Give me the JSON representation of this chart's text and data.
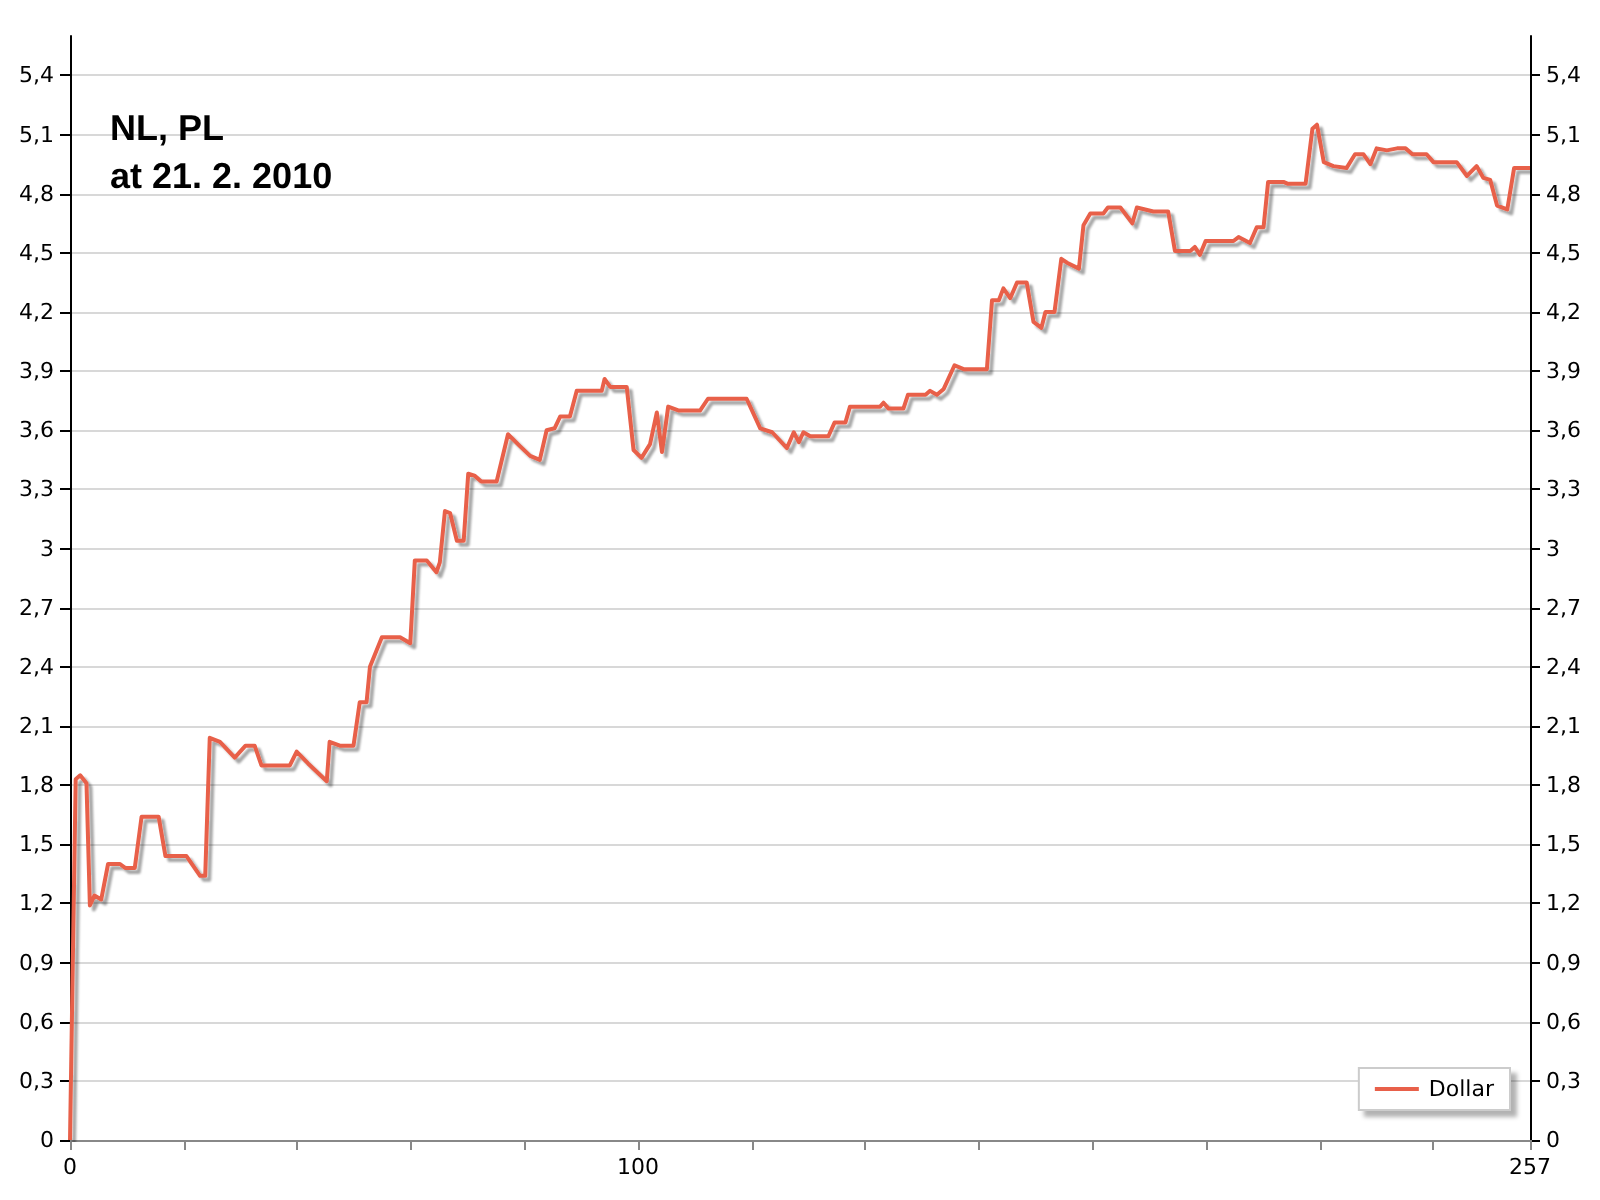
{
  "chart_data": {
    "type": "line",
    "title": "NL, PL",
    "subtitle": "at 21. 2. 2010",
    "series": [
      {
        "name": "Dollar",
        "color": "#e8604a",
        "x": [
          0,
          1,
          1.8,
          2.9,
          3.5,
          4.3,
          5.5,
          6.7,
          8.8,
          9.7,
          11.4,
          12.6,
          15.6,
          16.8,
          20.5,
          22.9,
          23.8,
          24.6,
          26.4,
          29,
          30.9,
          32.5,
          33.7,
          38.7,
          39.9,
          41.9,
          45.2,
          45.7,
          47.5,
          49.9,
          51,
          52.2,
          52.8,
          54.9,
          58.1,
          59.9,
          60.7,
          62.8,
          64.5,
          65.1,
          66,
          66.9,
          68.1,
          69.3,
          70.1,
          71.2,
          72.4,
          75.1,
          77.1,
          79.2,
          81,
          82.7,
          83.9,
          85.3,
          86.3,
          88,
          89.2,
          93.6,
          94.1,
          95.1,
          98,
          99.2,
          100.6,
          102.1,
          103.3,
          104.2,
          105.3,
          107.2,
          110.9,
          112.3,
          119.1,
          121.5,
          123.6,
          126.2,
          127.4,
          128.3,
          129.1,
          130.3,
          133.5,
          134.6,
          136.5,
          137.3,
          142.6,
          143.2,
          144.1,
          146.7,
          147.5,
          150.6,
          151.4,
          152.6,
          153.8,
          155.7,
          157.3,
          161.4,
          162.3,
          163.5,
          164.3,
          165.5,
          166.7,
          168.4,
          169.6,
          171,
          171.7,
          173.3,
          174.5,
          175.5,
          177.6,
          178.4,
          179.6,
          181.9,
          182.7,
          184.9,
          187,
          187.8,
          190.7,
          193.3,
          194.5,
          197.2,
          198,
          198.9,
          199.9,
          204.8,
          205.7,
          207.7,
          208.9,
          210.1,
          210.9,
          213.6,
          214.4,
          217.5,
          218.7,
          219.5,
          220.7,
          222.4,
          224.7,
          226.2,
          227.7,
          228.9,
          230,
          231.8,
          233.6,
          235.1,
          236.3,
          238.8,
          240,
          244.1,
          245.9,
          247.6,
          248.8,
          250,
          251.2,
          253,
          254.2,
          257
        ],
        "values": [
          0,
          1.83,
          1.85,
          1.81,
          1.19,
          1.24,
          1.22,
          1.4,
          1.4,
          1.38,
          1.38,
          1.64,
          1.64,
          1.44,
          1.44,
          1.34,
          1.34,
          2.04,
          2.02,
          1.94,
          2,
          2,
          1.9,
          1.9,
          1.97,
          1.91,
          1.82,
          2.02,
          2,
          2,
          2.22,
          2.22,
          2.4,
          2.55,
          2.55,
          2.52,
          2.94,
          2.94,
          2.88,
          2.93,
          3.19,
          3.18,
          3.04,
          3.04,
          3.38,
          3.37,
          3.34,
          3.34,
          3.58,
          3.52,
          3.47,
          3.45,
          3.6,
          3.61,
          3.67,
          3.67,
          3.8,
          3.8,
          3.86,
          3.82,
          3.82,
          3.5,
          3.46,
          3.53,
          3.69,
          3.49,
          3.72,
          3.7,
          3.7,
          3.76,
          3.76,
          3.61,
          3.59,
          3.51,
          3.59,
          3.54,
          3.59,
          3.57,
          3.57,
          3.64,
          3.64,
          3.72,
          3.72,
          3.74,
          3.71,
          3.71,
          3.78,
          3.78,
          3.8,
          3.78,
          3.81,
          3.93,
          3.91,
          3.91,
          4.26,
          4.26,
          4.32,
          4.27,
          4.35,
          4.35,
          4.15,
          4.12,
          4.2,
          4.2,
          4.47,
          4.45,
          4.42,
          4.64,
          4.7,
          4.7,
          4.73,
          4.73,
          4.65,
          4.73,
          4.71,
          4.71,
          4.51,
          4.51,
          4.53,
          4.49,
          4.56,
          4.56,
          4.58,
          4.55,
          4.63,
          4.63,
          4.86,
          4.86,
          4.85,
          4.85,
          5.13,
          5.15,
          4.96,
          4.94,
          4.93,
          5,
          5,
          4.95,
          5.03,
          5.02,
          5.03,
          5.03,
          5,
          5,
          4.96,
          4.96,
          4.89,
          4.94,
          4.88,
          4.87,
          4.74,
          4.72,
          4.93,
          4.93
        ]
      }
    ],
    "xlim": [
      0,
      257
    ],
    "xticks": [
      0,
      {
        "value": 20,
        "label": null
      },
      {
        "value": 40,
        "label": null
      },
      {
        "value": 60,
        "label": null
      },
      {
        "value": 80,
        "label": null
      },
      100,
      {
        "value": 120,
        "label": null
      },
      {
        "value": 140,
        "label": null
      },
      {
        "value": 160,
        "label": null
      },
      {
        "value": 180,
        "label": null
      },
      {
        "value": 200,
        "label": null
      },
      {
        "value": 220,
        "label": null
      },
      {
        "value": 240,
        "label": null
      },
      257
    ],
    "ylim": [
      0,
      5.6
    ],
    "yticks": [
      0,
      {
        "value": 0.3,
        "label": "0,3"
      },
      {
        "value": 0.6,
        "label": "0,6"
      },
      {
        "value": 0.9,
        "label": "0,9"
      },
      {
        "value": 1.2,
        "label": "1,2"
      },
      {
        "value": 1.5,
        "label": "1,5"
      },
      {
        "value": 1.8,
        "label": "1,8"
      },
      {
        "value": 2.1,
        "label": "2,1"
      },
      {
        "value": 2.4,
        "label": "2,4"
      },
      {
        "value": 2.7,
        "label": "2,7"
      },
      3,
      {
        "value": 3.3,
        "label": "3,3"
      },
      {
        "value": 3.6,
        "label": "3,6"
      },
      {
        "value": 3.9,
        "label": "3,9"
      },
      {
        "value": 4.2,
        "label": "4,2"
      },
      {
        "value": 4.5,
        "label": "4,5"
      },
      {
        "value": 4.8,
        "label": "4,8"
      },
      {
        "value": 5.1,
        "label": "5,1"
      },
      {
        "value": 5.4,
        "label": "5,4"
      }
    ],
    "y2lim": [
      0,
      5.6
    ],
    "y2ticks": [
      0,
      {
        "value": 0.3,
        "label": "0,3"
      },
      {
        "value": 0.6,
        "label": "0,6"
      },
      {
        "value": 0.9,
        "label": "0,9"
      },
      {
        "value": 1.2,
        "label": "1,2"
      },
      {
        "value": 1.5,
        "label": "1,5"
      },
      {
        "value": 1.8,
        "label": "1,8"
      },
      {
        "value": 2.1,
        "label": "2,1"
      },
      {
        "value": 2.4,
        "label": "2,4"
      },
      {
        "value": 2.7,
        "label": "2,7"
      },
      3,
      {
        "value": 3.3,
        "label": "3,3"
      },
      {
        "value": 3.6,
        "label": "3,6"
      },
      {
        "value": 3.9,
        "label": "3,9"
      },
      {
        "value": 4.2,
        "label": "4,2"
      },
      {
        "value": 4.5,
        "label": "4,5"
      },
      {
        "value": 4.8,
        "label": "4,8"
      },
      {
        "value": 5.1,
        "label": "5,1"
      },
      {
        "value": 5.4,
        "label": "5,4"
      }
    ],
    "grid": "y",
    "legend": "bottom right",
    "marker": "none",
    "line_style": "solid"
  }
}
